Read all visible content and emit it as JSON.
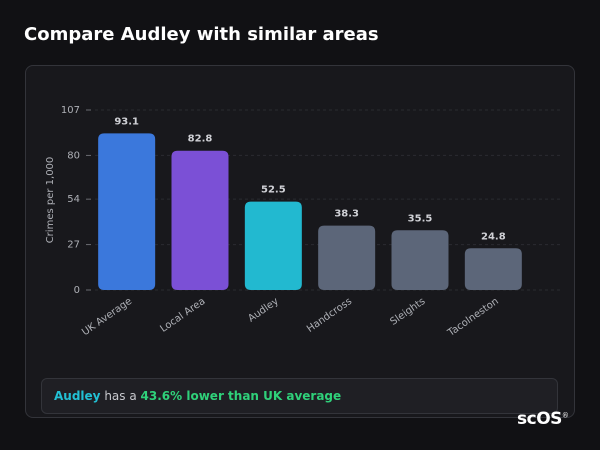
{
  "header": {
    "title": "Compare Audley with similar areas"
  },
  "chart_data": {
    "type": "bar",
    "y_label": "Crimes per 1,000",
    "categories": [
      "UK Average",
      "Local Area",
      "Audley",
      "Handcross",
      "Sleights",
      "Tacolneston"
    ],
    "values": [
      93.1,
      82.8,
      52.5,
      38.3,
      35.5,
      24.8
    ],
    "colors": [
      "#3b78dc",
      "#7b50d6",
      "#22b9d0",
      "#5c6679",
      "#5c6679",
      "#5c6679"
    ],
    "ylim": [
      0,
      107
    ],
    "yticks": [
      0,
      27,
      54,
      80,
      107
    ],
    "grid": true
  },
  "callout": {
    "subject": "Audley",
    "middle": "has a",
    "highlight": "43.6% lower than UK average"
  },
  "logo": {
    "text": "scOS",
    "mark": "®"
  }
}
